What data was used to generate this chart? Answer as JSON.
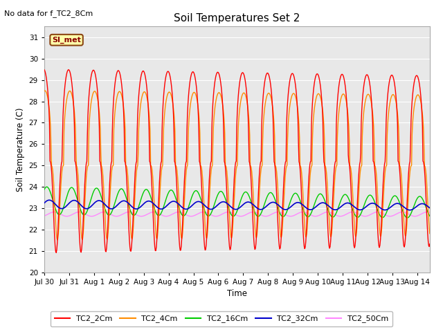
{
  "title": "Soil Temperatures Set 2",
  "subtitle": "No data for f_TC2_8Cm",
  "xlabel": "Time",
  "ylabel": "Soil Temperature (C)",
  "ylim": [
    20.0,
    31.5
  ],
  "yticks": [
    20.0,
    21.0,
    22.0,
    23.0,
    24.0,
    25.0,
    26.0,
    27.0,
    28.0,
    29.0,
    30.0,
    31.0
  ],
  "bg_color": "#ffffff",
  "plot_bg_color": "#e8e8e8",
  "series": {
    "TC2_2Cm": {
      "color": "#ff0000",
      "lw": 1.0
    },
    "TC2_4Cm": {
      "color": "#ff8c00",
      "lw": 1.0
    },
    "TC2_16Cm": {
      "color": "#00cc00",
      "lw": 1.0
    },
    "TC2_32Cm": {
      "color": "#0000cc",
      "lw": 1.2
    },
    "TC2_50Cm": {
      "color": "#ff88ff",
      "lw": 1.0
    }
  },
  "legend_label": "SI_met",
  "legend_bg": "#ffffaa",
  "legend_border": "#8b4513",
  "n_days": 15.5,
  "n_points": 744,
  "tick_labels": [
    "Jul 30",
    "Jul 31",
    "Aug 1",
    "Aug 2",
    "Aug 3",
    "Aug 4",
    "Aug 5",
    "Aug 6",
    "Aug 7",
    "Aug 8",
    "Aug 9",
    "Aug 10",
    "Aug 11",
    "Aug 12",
    "Aug 13",
    "Aug 14"
  ]
}
